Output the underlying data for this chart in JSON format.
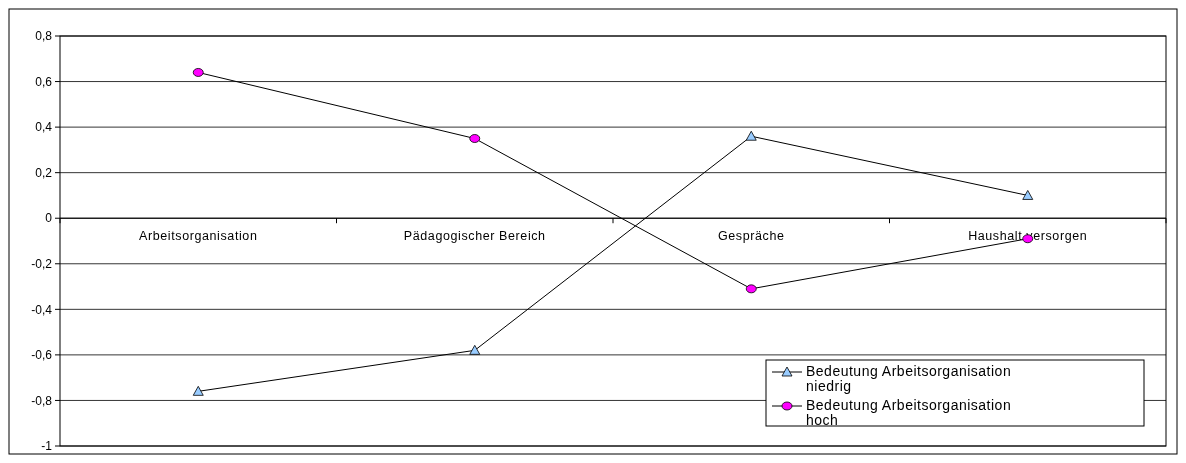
{
  "chart_data": {
    "type": "line",
    "categories": [
      "Arbeitsorganisation",
      "Pädagogischer Bereich",
      "Gespräche",
      "Haushalt versorgen"
    ],
    "series": [
      {
        "name": "Bedeutung Arbeitsorganisation niedrig",
        "color": "#99ccff",
        "marker": "triangle",
        "values": [
          -0.76,
          -0.58,
          0.36,
          0.1
        ]
      },
      {
        "name": "Bedeutung Arbeitsorganisation hoch",
        "color": "#ff00ff",
        "marker": "circle",
        "values": [
          0.64,
          0.35,
          -0.31,
          -0.09
        ]
      }
    ],
    "ylim": [
      -1,
      0.8
    ],
    "yticks": [
      {
        "value": -1,
        "label": "-1"
      },
      {
        "value": -0.8,
        "label": "-0,8"
      },
      {
        "value": -0.6,
        "label": "-0,6"
      },
      {
        "value": -0.4,
        "label": "-0,4"
      },
      {
        "value": -0.2,
        "label": "-0,2"
      },
      {
        "value": 0,
        "label": "0"
      },
      {
        "value": 0.2,
        "label": "0,2"
      },
      {
        "value": 0.4,
        "label": "0,4"
      },
      {
        "value": 0.6,
        "label": "0,6"
      },
      {
        "value": 0.8,
        "label": "0,8"
      }
    ],
    "grid": "y",
    "legend": "bottom right"
  }
}
